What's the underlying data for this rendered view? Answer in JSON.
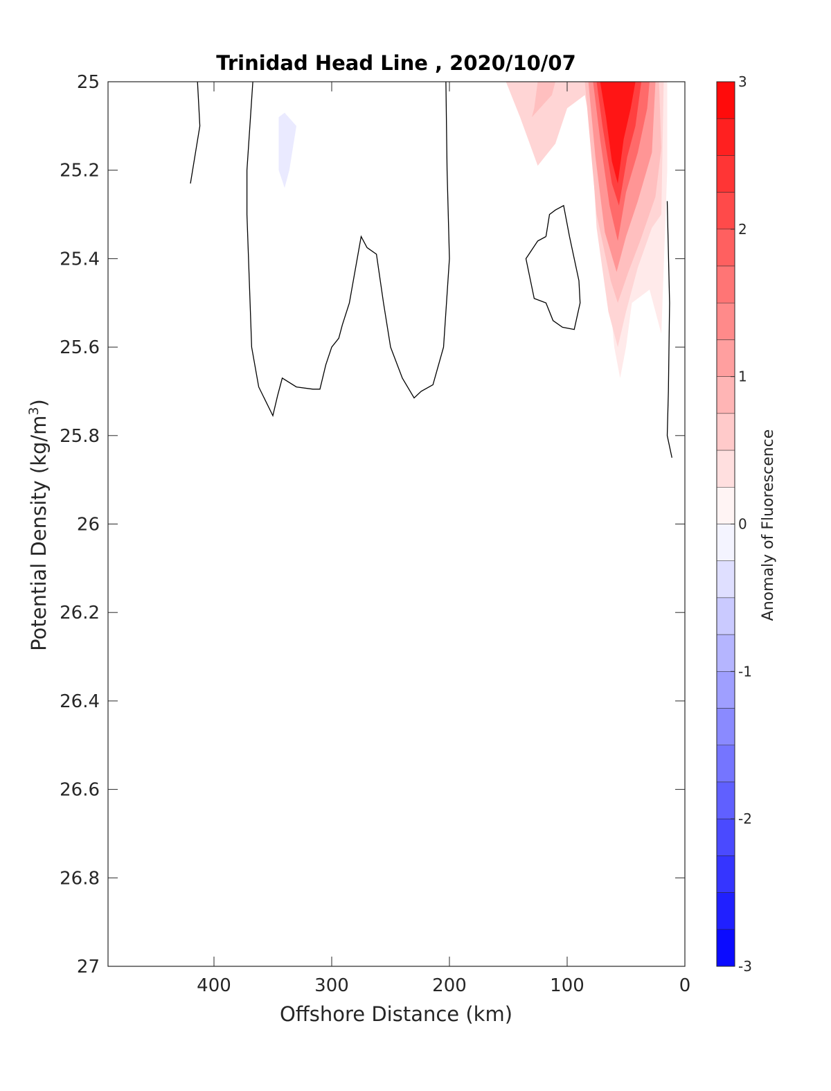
{
  "chart_data": {
    "type": "heatmap",
    "title": "Trinidad Head Line , 2020/10/07",
    "xlabel": "Offshore Distance (km)",
    "ylabel_main": "Potential Density (kg/m",
    "ylabel_sup": "3",
    "ylabel_close": ")",
    "xlim": [
      490,
      0
    ],
    "ylim": [
      27,
      25
    ],
    "x_reversed": true,
    "y_reversed": true,
    "xticks": [
      400,
      300,
      200,
      100,
      0
    ],
    "xtick_labels": [
      "400",
      "300",
      "200",
      "100",
      "0"
    ],
    "yticks": [
      25,
      25.2,
      25.4,
      25.6,
      25.8,
      26,
      26.2,
      26.4,
      26.6,
      26.8,
      27
    ],
    "ytick_labels": [
      "25",
      "25.2",
      "25.4",
      "25.6",
      "25.8",
      "26",
      "26.2",
      "26.4",
      "26.6",
      "26.8",
      "27"
    ],
    "grid": false,
    "colorbar": {
      "label": "Anomaly of Fluorescence",
      "range": [
        -3,
        3
      ],
      "levels": 24,
      "ticks": [
        3,
        2,
        1,
        0,
        -1,
        -2,
        -3
      ],
      "tick_labels": [
        "3",
        "2",
        "1",
        "0",
        "-1",
        "-2",
        "-3"
      ],
      "low_color": "#0000ff",
      "mid_color": "#ffffff",
      "high_color": "#ff0000"
    },
    "filled_regions": [
      {
        "level": 0.25,
        "points": [
          [
            155,
            25
          ],
          [
            80,
            25
          ],
          [
            70,
            25.3
          ],
          [
            60,
            25.6
          ],
          [
            55,
            25.67
          ],
          [
            50,
            25.6
          ],
          [
            45,
            25.5
          ],
          [
            30,
            25.47
          ],
          [
            20,
            25.57
          ],
          [
            15,
            25.2
          ],
          [
            15,
            25
          ],
          [
            155,
            25
          ]
        ]
      },
      {
        "level": 0.5,
        "points": [
          [
            152,
            25
          ],
          [
            140,
            25.08
          ],
          [
            125,
            25.19
          ],
          [
            110,
            25.14
          ],
          [
            100,
            25.06
          ],
          [
            85,
            25.03
          ],
          [
            80,
            25.1
          ],
          [
            75,
            25.33
          ],
          [
            65,
            25.52
          ],
          [
            57,
            25.6
          ],
          [
            50,
            25.52
          ],
          [
            40,
            25.42
          ],
          [
            28,
            25.33
          ],
          [
            20,
            25.3
          ],
          [
            18,
            25
          ],
          [
            152,
            25
          ]
        ]
      },
      {
        "level": 0.75,
        "points": [
          [
            125,
            25
          ],
          [
            128,
            25.06
          ],
          [
            130,
            25.08
          ],
          [
            113,
            25.03
          ],
          [
            110,
            25
          ]
        ]
      },
      {
        "level": 0.75,
        "points": [
          [
            85,
            25
          ],
          [
            80,
            25.15
          ],
          [
            75,
            25.3
          ],
          [
            63,
            25.45
          ],
          [
            57,
            25.5
          ],
          [
            48,
            25.43
          ],
          [
            38,
            25.36
          ],
          [
            25,
            25.26
          ],
          [
            20,
            25.15
          ],
          [
            22,
            25
          ],
          [
            85,
            25
          ]
        ]
      },
      {
        "level": 1.25,
        "points": [
          [
            82,
            25
          ],
          [
            76,
            25.17
          ],
          [
            68,
            25.34
          ],
          [
            58,
            25.43
          ],
          [
            50,
            25.35
          ],
          [
            40,
            25.27
          ],
          [
            28,
            25.16
          ],
          [
            25,
            25
          ],
          [
            82,
            25
          ]
        ]
      },
      {
        "level": 1.75,
        "points": [
          [
            78,
            25
          ],
          [
            72,
            25.13
          ],
          [
            64,
            25.28
          ],
          [
            57,
            25.36
          ],
          [
            50,
            25.25
          ],
          [
            40,
            25.16
          ],
          [
            32,
            25.06
          ],
          [
            30,
            25
          ],
          [
            78,
            25
          ]
        ]
      },
      {
        "level": 2.25,
        "points": [
          [
            75,
            25
          ],
          [
            70,
            25.1
          ],
          [
            62,
            25.23
          ],
          [
            56,
            25.28
          ],
          [
            49,
            25.17
          ],
          [
            42,
            25.1
          ],
          [
            38,
            25.02
          ],
          [
            37,
            25
          ],
          [
            75,
            25
          ]
        ]
      },
      {
        "level": 2.75,
        "points": [
          [
            72,
            25
          ],
          [
            67,
            25.08
          ],
          [
            62,
            25.18
          ],
          [
            57,
            25.23
          ],
          [
            52,
            25.13
          ],
          [
            46,
            25.06
          ],
          [
            42,
            25
          ],
          [
            72,
            25
          ]
        ]
      },
      {
        "level": -0.25,
        "points": [
          [
            345,
            25.08
          ],
          [
            340,
            25.07
          ],
          [
            330,
            25.1
          ],
          [
            336,
            25.2
          ],
          [
            340,
            25.24
          ],
          [
            345,
            25.2
          ]
        ]
      }
    ],
    "zero_contours": [
      [
        [
          414,
          25
        ],
        [
          412,
          25.1
        ],
        [
          420,
          25.23
        ]
      ],
      [
        [
          367,
          25
        ],
        [
          372,
          25.2
        ],
        [
          372,
          25.3
        ],
        [
          370,
          25.45
        ],
        [
          368,
          25.6
        ],
        [
          362,
          25.69
        ],
        [
          350,
          25.755
        ],
        [
          346,
          25.71
        ],
        [
          342,
          25.67
        ],
        [
          330,
          25.69
        ],
        [
          316,
          25.695
        ],
        [
          310,
          25.695
        ],
        [
          305,
          25.64
        ],
        [
          300,
          25.6
        ],
        [
          294,
          25.58
        ],
        [
          291,
          25.55
        ],
        [
          285,
          25.5
        ],
        [
          275,
          25.35
        ],
        [
          270,
          25.375
        ],
        [
          262,
          25.39
        ],
        [
          256,
          25.5
        ],
        [
          250,
          25.6
        ],
        [
          240,
          25.67
        ],
        [
          230,
          25.715
        ],
        [
          224,
          25.7
        ],
        [
          214,
          25.685
        ],
        [
          205,
          25.6
        ],
        [
          200,
          25.4
        ],
        [
          202,
          25.2
        ],
        [
          203,
          25
        ]
      ],
      [
        [
          118,
          25.35
        ],
        [
          125,
          25.36
        ],
        [
          135,
          25.4
        ],
        [
          128,
          25.49
        ],
        [
          118,
          25.5
        ],
        [
          112,
          25.54
        ],
        [
          104,
          25.555
        ],
        [
          94,
          25.56
        ],
        [
          89,
          25.5
        ],
        [
          90,
          25.45
        ],
        [
          98,
          25.35
        ],
        [
          103,
          25.28
        ],
        [
          110,
          25.29
        ],
        [
          115,
          25.3
        ],
        [
          118,
          25.35
        ]
      ],
      [
        [
          15,
          25.27
        ],
        [
          13,
          25.5
        ],
        [
          14,
          25.7
        ],
        [
          15,
          25.8
        ],
        [
          11,
          25.85
        ]
      ]
    ]
  }
}
